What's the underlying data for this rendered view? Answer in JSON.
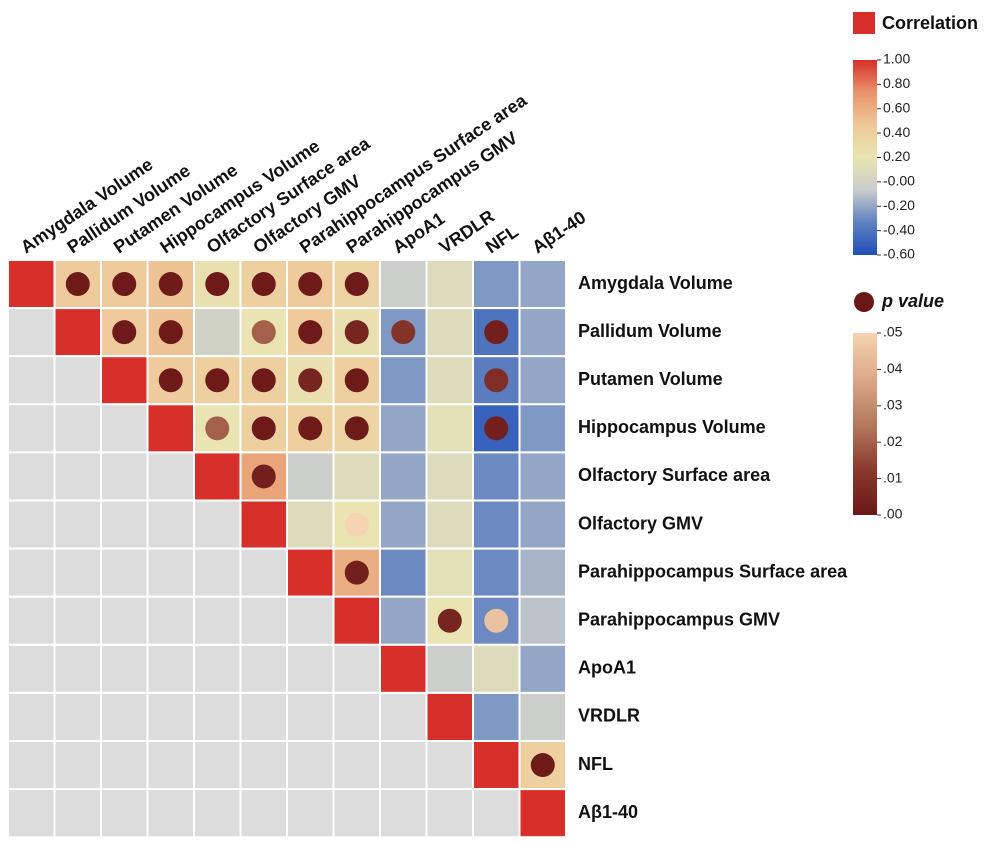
{
  "chart_data": {
    "type": "heatmap",
    "labels": [
      "Amygdala Volume",
      "Pallidum Volume",
      "Putamen Volume",
      "Hippocampus Volume",
      "Olfactory Surface area",
      "Olfactory GMV",
      "Parahippocampus Surface area",
      "Parahippocampus GMV",
      "ApoA1",
      "VRDLR",
      "NFL",
      "Aβ1-40"
    ],
    "matrix": [
      [
        1,
        0.45,
        0.45,
        0.5,
        0.25,
        0.4,
        0.45,
        0.35,
        -0.05,
        0.1,
        -0.25,
        -0.2
      ],
      [
        null,
        1,
        0.45,
        0.5,
        0.0,
        0.2,
        0.45,
        0.25,
        -0.25,
        0.1,
        -0.4,
        -0.2
      ],
      [
        null,
        null,
        1,
        0.45,
        0.4,
        0.4,
        0.25,
        0.4,
        -0.25,
        0.1,
        -0.35,
        -0.2
      ],
      [
        null,
        null,
        null,
        1,
        0.2,
        0.4,
        0.4,
        0.35,
        -0.2,
        0.15,
        -0.5,
        -0.25
      ],
      [
        null,
        null,
        null,
        null,
        1,
        0.65,
        -0.05,
        0.1,
        -0.2,
        0.1,
        -0.3,
        -0.2
      ],
      [
        null,
        null,
        null,
        null,
        null,
        1,
        0.1,
        0.2,
        -0.2,
        0.1,
        -0.3,
        -0.2
      ],
      [
        null,
        null,
        null,
        null,
        null,
        null,
        1,
        0.6,
        -0.3,
        0.15,
        -0.3,
        -0.15
      ],
      [
        null,
        null,
        null,
        null,
        null,
        null,
        null,
        1,
        -0.2,
        0.2,
        -0.3,
        -0.1
      ],
      [
        null,
        null,
        null,
        null,
        null,
        null,
        null,
        null,
        1,
        -0.05,
        0.1,
        -0.2
      ],
      [
        null,
        null,
        null,
        null,
        null,
        null,
        null,
        null,
        null,
        1,
        -0.25,
        -0.05
      ],
      [
        null,
        null,
        null,
        null,
        null,
        null,
        null,
        null,
        null,
        null,
        1,
        0.4
      ],
      [
        null,
        null,
        null,
        null,
        null,
        null,
        null,
        null,
        null,
        null,
        null,
        1
      ]
    ],
    "p_values": [
      [
        null,
        0.001,
        0.001,
        0.001,
        0.001,
        0.001,
        0.001,
        0.001,
        null,
        null,
        null,
        null
      ],
      [
        null,
        null,
        0.001,
        0.001,
        null,
        0.02,
        0.001,
        0.005,
        0.01,
        null,
        0.003,
        null
      ],
      [
        null,
        null,
        null,
        0.001,
        0.001,
        0.001,
        0.005,
        0.001,
        null,
        null,
        0.008,
        null
      ],
      [
        null,
        null,
        null,
        null,
        0.02,
        0.001,
        0.001,
        0.001,
        null,
        null,
        0.003,
        null
      ],
      [
        null,
        null,
        null,
        null,
        null,
        0.003,
        null,
        null,
        null,
        null,
        null,
        null
      ],
      [
        null,
        null,
        null,
        null,
        null,
        null,
        null,
        0.05,
        null,
        null,
        null,
        null
      ],
      [
        null,
        null,
        null,
        null,
        null,
        null,
        null,
        0.003,
        null,
        null,
        null,
        null
      ],
      [
        null,
        null,
        null,
        null,
        null,
        null,
        null,
        null,
        null,
        0.005,
        0.045,
        null
      ],
      [
        null,
        null,
        null,
        null,
        null,
        null,
        null,
        null,
        null,
        null,
        null,
        null
      ],
      [
        null,
        null,
        null,
        null,
        null,
        null,
        null,
        null,
        null,
        null,
        null,
        null
      ],
      [
        null,
        null,
        null,
        null,
        null,
        null,
        null,
        null,
        null,
        null,
        null,
        0.001
      ],
      [
        null,
        null,
        null,
        null,
        null,
        null,
        null,
        null,
        null,
        null,
        null,
        null
      ]
    ],
    "empty_color": "#dcdcdc",
    "correlation_legend": {
      "title": "Correlation",
      "lim": [
        -0.6,
        1.0
      ],
      "colors": [
        "#1f4fb8",
        "#5f80c0",
        "#c9cccc",
        "#e9e4b2",
        "#eec89a",
        "#e8946c",
        "#d7302a"
      ],
      "ticks": [
        {
          "value": 1.0,
          "label": "1.00"
        },
        {
          "value": 0.8,
          "label": "0.80"
        },
        {
          "value": 0.6,
          "label": "0.60"
        },
        {
          "value": 0.4,
          "label": "0.40"
        },
        {
          "value": 0.2,
          "label": "0.20"
        },
        {
          "value": 0,
          "label": "-0.00"
        },
        {
          "value": -0.2,
          "label": "-0.20"
        },
        {
          "value": -0.4,
          "label": "-0.40"
        },
        {
          "value": -0.6,
          "label": "-0.60"
        }
      ]
    },
    "p_legend": {
      "title": "p value",
      "lim": [
        0,
        0.05
      ],
      "colors": [
        "#6b1717",
        "#8a3a2e",
        "#b47a5e",
        "#dba988",
        "#f6d3b2"
      ],
      "ticks": [
        {
          "value": 0.05,
          "label": ".05"
        },
        {
          "value": 0.04,
          "label": ".04"
        },
        {
          "value": 0.03,
          "label": ".03"
        },
        {
          "value": 0.02,
          "label": ".02"
        },
        {
          "value": 0.01,
          "label": ".01"
        },
        {
          "value": 0,
          "label": ".00"
        }
      ]
    }
  }
}
